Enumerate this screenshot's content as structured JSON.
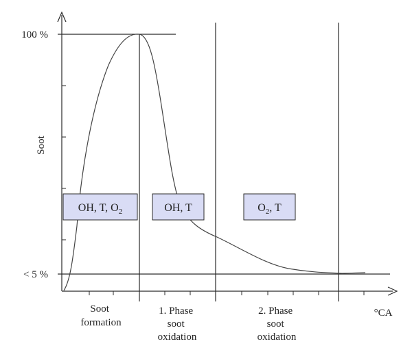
{
  "diagram": {
    "y_axis_label": "Soot",
    "x_axis_label": "°CA",
    "y_tick_top": "100 %",
    "y_tick_bottom": "< 5 %",
    "phases": [
      {
        "lines": [
          "Soot",
          "formation"
        ]
      },
      {
        "lines": [
          "1. Phase",
          "soot",
          "oxidation"
        ]
      },
      {
        "lines": [
          "2. Phase",
          "soot",
          "oxidation"
        ]
      }
    ],
    "boxes": [
      {
        "main": "OH, T, O",
        "sub": "2",
        "tail": ""
      },
      {
        "main": "OH, T",
        "sub": "",
        "tail": ""
      },
      {
        "main": "O",
        "sub": "2",
        "tail": ", T"
      }
    ],
    "colors": {
      "box_fill": "#d9dcf5",
      "line": "#2a2a2a",
      "curve": "#444444"
    }
  }
}
